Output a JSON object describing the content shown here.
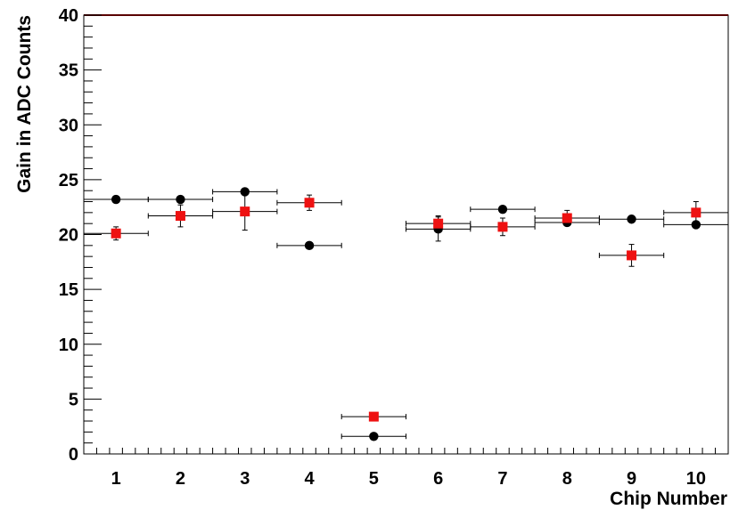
{
  "chart_data": {
    "type": "scatter",
    "title": "",
    "xlabel": "Chip Number",
    "ylabel": "Gain in ADC Counts",
    "xlim": [
      0.5,
      10.5
    ],
    "ylim": [
      0,
      40
    ],
    "x_ticks": [
      "1",
      "2",
      "3",
      "4",
      "5",
      "6",
      "7",
      "8",
      "9",
      "10"
    ],
    "y_ticks": [
      "0",
      "5",
      "10",
      "15",
      "20",
      "25",
      "30",
      "35",
      "40"
    ],
    "grid": false,
    "legend": "none",
    "series": [
      {
        "marker": "circle",
        "color": "#000000",
        "points": [
          {
            "x": 1,
            "y": 23.2,
            "xerr": 0.5,
            "yerr": 0.2
          },
          {
            "x": 2,
            "y": 23.2,
            "xerr": 0.5,
            "yerr": 0.2
          },
          {
            "x": 3,
            "y": 23.9,
            "xerr": 0.5,
            "yerr": 0.2
          },
          {
            "x": 4,
            "y": 19.0,
            "xerr": 0.5,
            "yerr": 0.2
          },
          {
            "x": 5,
            "y": 1.6,
            "xerr": 0.5,
            "yerr": 0.1
          },
          {
            "x": 6,
            "y": 20.5,
            "xerr": 0.5,
            "yerr": 1.1
          },
          {
            "x": 7,
            "y": 22.3,
            "xerr": 0.5,
            "yerr": 0.2
          },
          {
            "x": 8,
            "y": 21.1,
            "xerr": 0.5,
            "yerr": 0.2
          },
          {
            "x": 9,
            "y": 21.4,
            "xerr": 0.5,
            "yerr": 0.2
          },
          {
            "x": 10,
            "y": 20.9,
            "xerr": 0.5,
            "yerr": 0.2
          }
        ]
      },
      {
        "marker": "square",
        "color": "#ee1111",
        "points": [
          {
            "x": 1,
            "y": 20.1,
            "xerr": 0.5,
            "yerr": 0.6
          },
          {
            "x": 2,
            "y": 21.7,
            "xerr": 0.5,
            "yerr": 1.0
          },
          {
            "x": 3,
            "y": 22.1,
            "xerr": 0.5,
            "yerr": 1.7
          },
          {
            "x": 4,
            "y": 22.9,
            "xerr": 0.5,
            "yerr": 0.7
          },
          {
            "x": 5,
            "y": 3.4,
            "xerr": 0.5,
            "yerr": 0.2
          },
          {
            "x": 6,
            "y": 21.0,
            "xerr": 0.5,
            "yerr": 0.7
          },
          {
            "x": 7,
            "y": 20.7,
            "xerr": 0.5,
            "yerr": 0.8
          },
          {
            "x": 8,
            "y": 21.5,
            "xerr": 0.5,
            "yerr": 0.7
          },
          {
            "x": 9,
            "y": 18.1,
            "xerr": 0.5,
            "yerr": 1.0
          },
          {
            "x": 10,
            "y": 22.0,
            "xerr": 0.5,
            "yerr": 1.0
          }
        ]
      }
    ]
  }
}
